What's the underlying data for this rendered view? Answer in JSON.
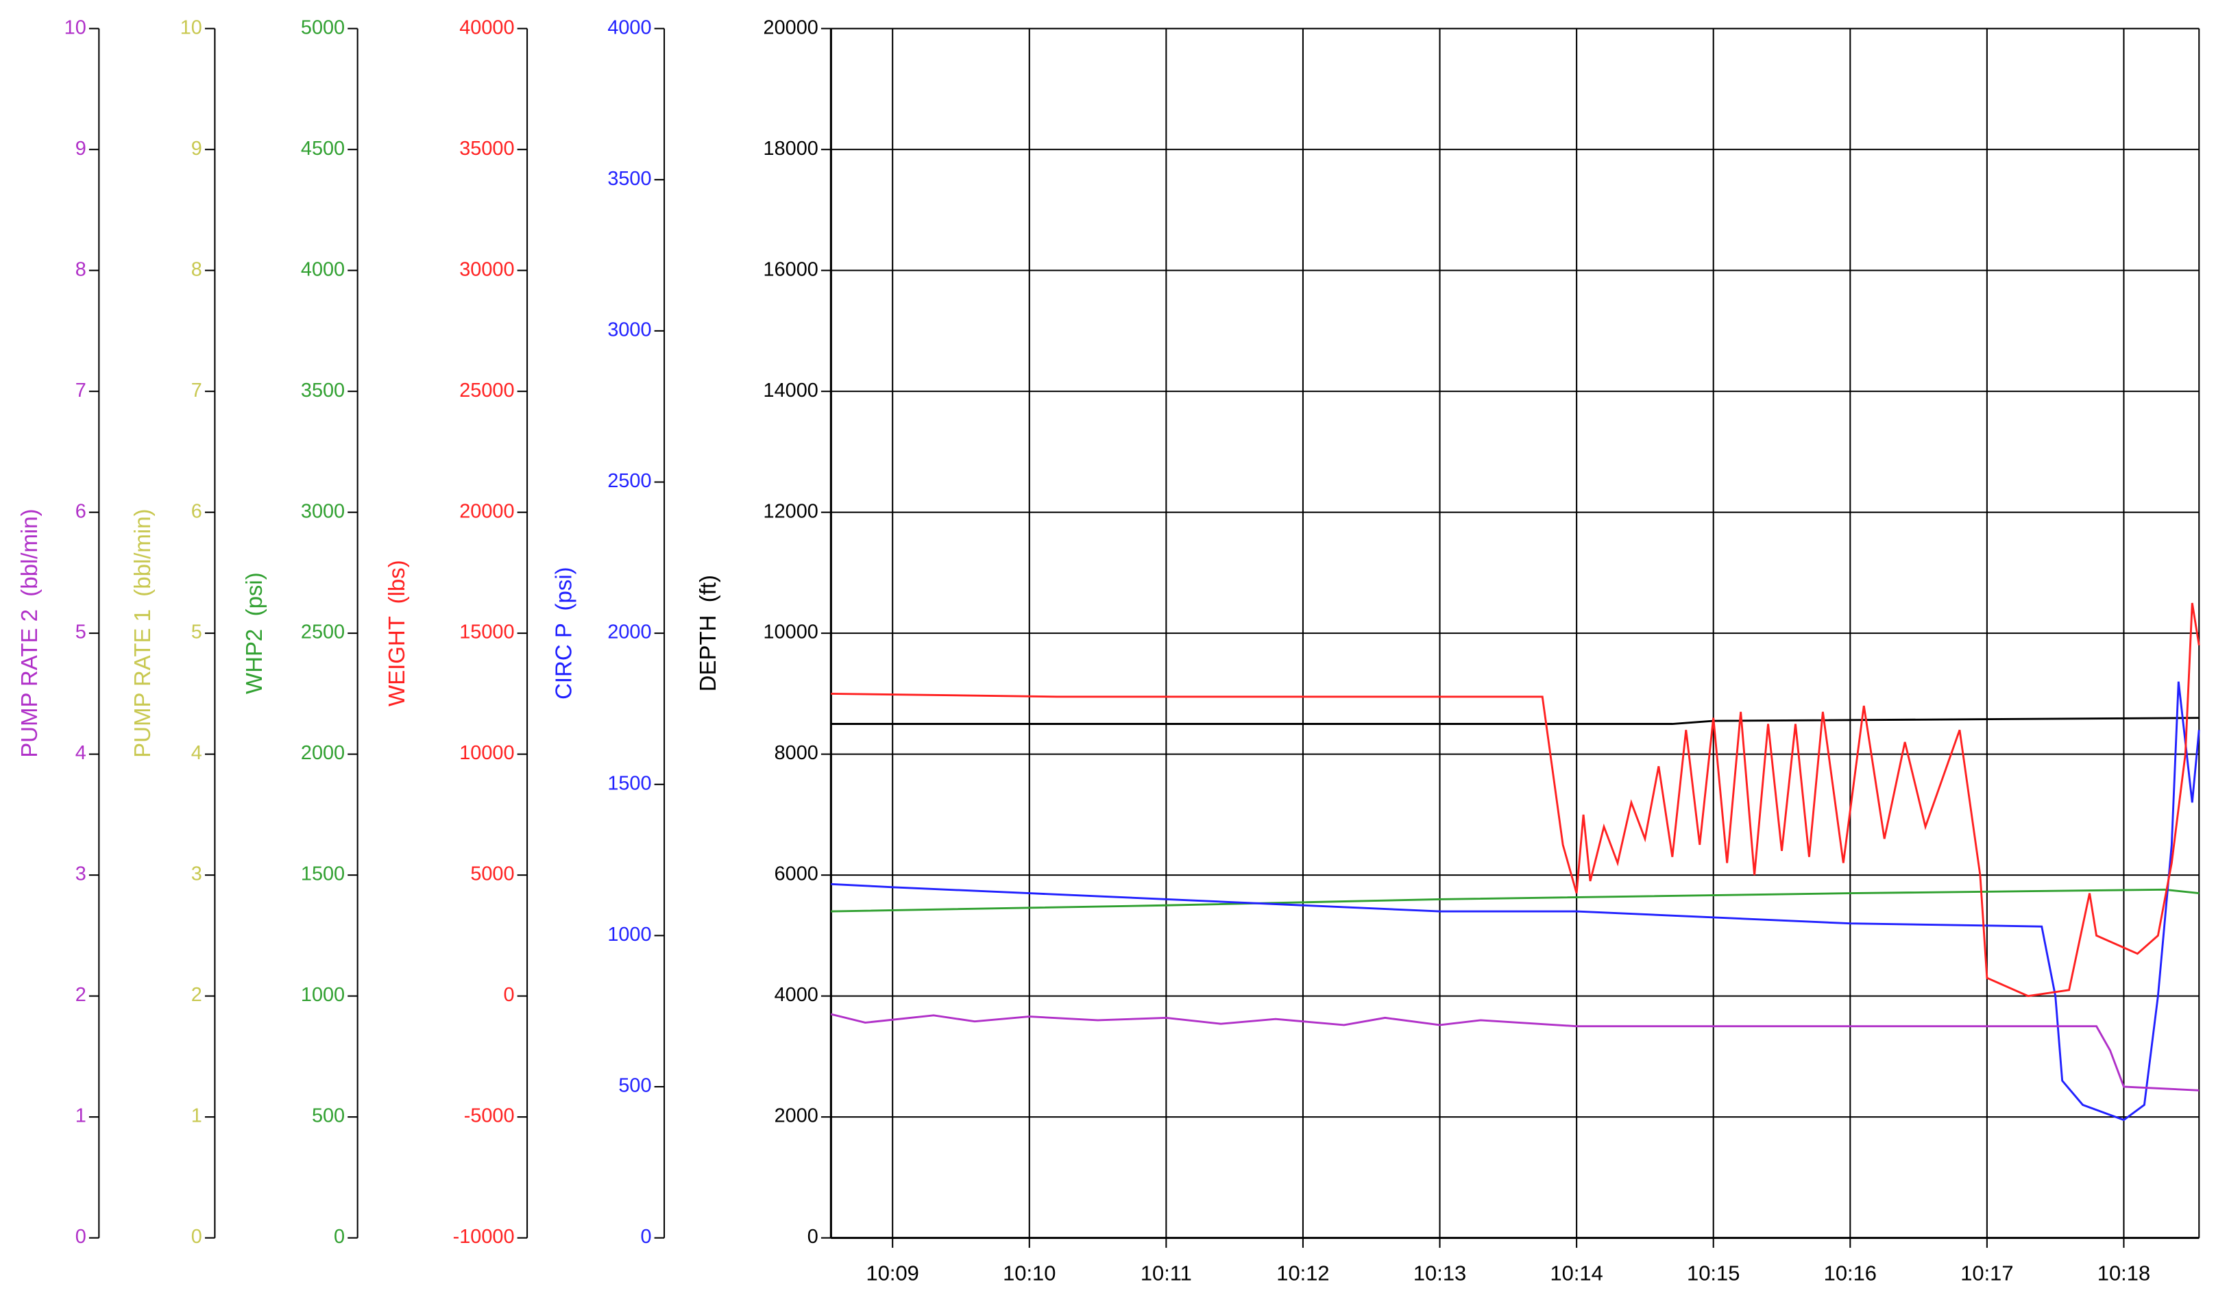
{
  "chart_data": {
    "type": "line",
    "xlim": [
      8.55,
      18.55
    ],
    "xticks": [
      {
        "value": 9,
        "label": "10:09"
      },
      {
        "value": 10,
        "label": "10:10"
      },
      {
        "value": 11,
        "label": "10:11"
      },
      {
        "value": 12,
        "label": "10:12"
      },
      {
        "value": 13,
        "label": "10:13"
      },
      {
        "value": 14,
        "label": "10:14"
      },
      {
        "value": 15,
        "label": "10:15"
      },
      {
        "value": 16,
        "label": "10:16"
      },
      {
        "value": 17,
        "label": "10:17"
      },
      {
        "value": 18,
        "label": "10:18"
      }
    ],
    "grid": true,
    "axes": [
      {
        "label": "PUMP RATE 2  (bbl/min)",
        "color": "#b030c8",
        "ylim": [
          0,
          10
        ],
        "yticks": [
          0,
          1,
          2,
          3,
          4,
          5,
          6,
          7,
          8,
          9,
          10
        ]
      },
      {
        "label": "PUMP RATE 1  (bbl/min)",
        "color": "#c8c850",
        "ylim": [
          0,
          10
        ],
        "yticks": [
          0,
          1,
          2,
          3,
          4,
          5,
          6,
          7,
          8,
          9,
          10
        ]
      },
      {
        "label": "WHP2  (psi)",
        "color": "#30a030",
        "ylim": [
          0,
          5000
        ],
        "yticks": [
          0,
          500,
          1000,
          1500,
          2000,
          2500,
          3000,
          3500,
          4000,
          4500,
          5000
        ]
      },
      {
        "label": "WEIGHT  (lbs)",
        "color": "#ff2020",
        "ylim": [
          -10000,
          40000
        ],
        "yticks": [
          -10000,
          -5000,
          0,
          5000,
          10000,
          15000,
          20000,
          25000,
          30000,
          35000,
          40000
        ]
      },
      {
        "label": "CIRC P  (psi)",
        "color": "#2020ff",
        "ylim": [
          0,
          4000
        ],
        "yticks": [
          0,
          500,
          1000,
          1500,
          2000,
          2500,
          3000,
          3500,
          4000
        ]
      },
      {
        "label": "DEPTH  (ft)",
        "color": "#000000",
        "ylim": [
          0,
          20000
        ],
        "yticks": [
          0,
          2000,
          4000,
          6000,
          8000,
          10000,
          12000,
          14000,
          16000,
          18000,
          20000
        ]
      }
    ],
    "series": [
      {
        "axis": 5,
        "color": "#000000",
        "x": [
          8.55,
          14.7,
          15,
          18.55
        ],
        "values": [
          8500,
          8500,
          8550,
          8600
        ]
      },
      {
        "axis": 2,
        "color": "#30a030",
        "x": [
          8.55,
          11,
          13,
          16,
          18.3,
          18.55
        ],
        "values": [
          1350,
          1375,
          1400,
          1425,
          1440,
          1425
        ]
      },
      {
        "axis": 4,
        "color": "#2020ff",
        "x": [
          8.55,
          9,
          10,
          12,
          13,
          14,
          16,
          17.4,
          17.5,
          17.55,
          17.7,
          18.0,
          18.15,
          18.25,
          18.35,
          18.4,
          18.5,
          18.55
        ],
        "values": [
          1170,
          1160,
          1140,
          1100,
          1080,
          1080,
          1040,
          1030,
          800,
          520,
          440,
          390,
          440,
          800,
          1300,
          1840,
          1440,
          1680
        ]
      },
      {
        "axis": 0,
        "color": "#b030c8",
        "x": [
          8.55,
          8.8,
          9.3,
          9.6,
          10,
          10.5,
          11,
          11.4,
          11.8,
          12.3,
          12.6,
          13,
          13.3,
          14,
          17.8,
          17.9,
          18.0,
          18.55
        ],
        "values": [
          1.85,
          1.78,
          1.84,
          1.79,
          1.83,
          1.8,
          1.82,
          1.77,
          1.81,
          1.76,
          1.82,
          1.76,
          1.8,
          1.75,
          1.75,
          1.55,
          1.25,
          1.22
        ]
      },
      {
        "axis": 3,
        "color": "#ff2020",
        "x": [
          8.55,
          10.2,
          13.75,
          13.9,
          14.0,
          14.05,
          14.1,
          14.2,
          14.3,
          14.4,
          14.5,
          14.6,
          14.7,
          14.8,
          14.9,
          15.0,
          15.1,
          15.2,
          15.3,
          15.4,
          15.5,
          15.6,
          15.7,
          15.8,
          15.95,
          16.1,
          16.25,
          16.4,
          16.55,
          16.8,
          16.95,
          17.0,
          17.3,
          17.6,
          17.75,
          17.8,
          18.1,
          18.25,
          18.35,
          18.45,
          18.5,
          18.55
        ],
        "values": [
          12500,
          12375,
          12375,
          6250,
          4250,
          7500,
          4750,
          7000,
          5500,
          8000,
          6500,
          9500,
          5750,
          11000,
          6250,
          11500,
          5500,
          11750,
          5000,
          11250,
          6000,
          11250,
          5750,
          11750,
          5500,
          12000,
          6500,
          10500,
          7000,
          11000,
          5000,
          750,
          0,
          250,
          4250,
          2500,
          1750,
          2500,
          5500,
          10000,
          16250,
          14500
        ]
      }
    ]
  }
}
